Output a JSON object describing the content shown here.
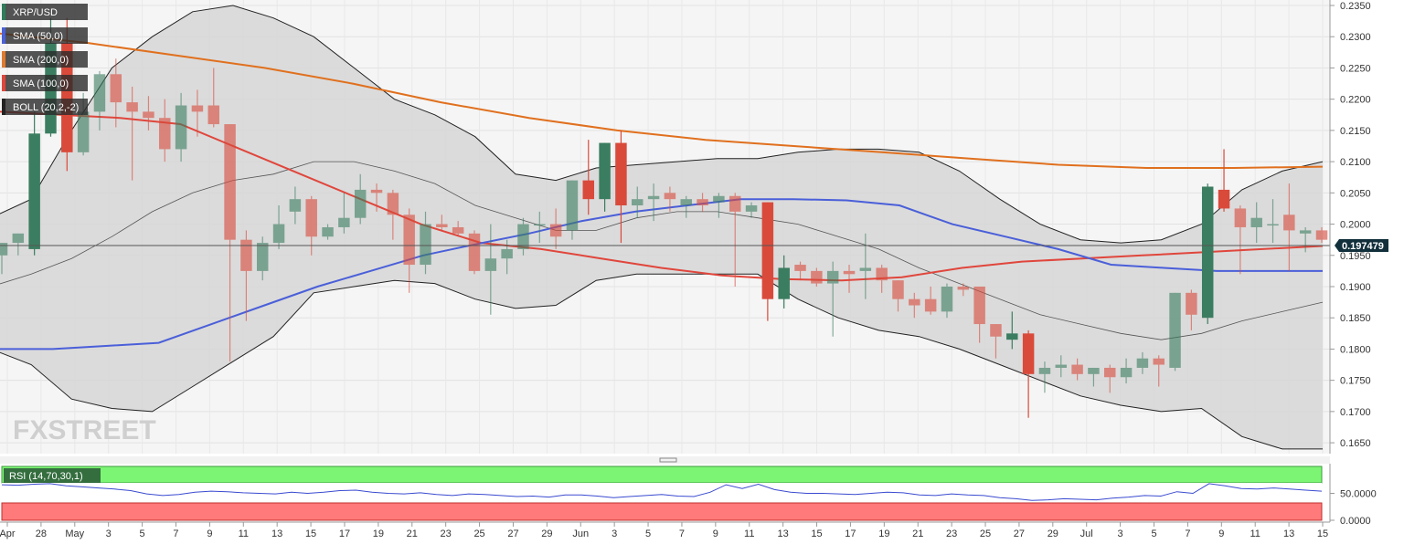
{
  "chart_data": {
    "type": "candlestick",
    "symbol": "XRP/USD",
    "last_price": "0.197479",
    "watermark": "FXSTREET",
    "legend": [
      {
        "label": "XRP/USD",
        "color": "#2e7d5b"
      },
      {
        "label": "SMA (50,0)",
        "color": "#4a5fd9"
      },
      {
        "label": "SMA (200,0)",
        "color": "#e07a2f"
      },
      {
        "label": "SMA (100,0)",
        "color": "#e0463c"
      },
      {
        "label": "BOLL (20,2,-2)",
        "color": "#222222"
      }
    ],
    "y_ticks": [
      "0.2350",
      "0.2300",
      "0.2250",
      "0.2200",
      "0.2150",
      "0.2100",
      "0.2050",
      "0.2000",
      "0.1950",
      "0.1900",
      "0.1850",
      "0.1800",
      "0.1750",
      "0.1700",
      "0.1650"
    ],
    "ylim": [
      0.1637,
      0.235
    ],
    "x_ticks": [
      "Apr",
      "28",
      "May",
      "3",
      "5",
      "7",
      "9",
      "11",
      "13",
      "15",
      "17",
      "19",
      "21",
      "23",
      "25",
      "27",
      "29",
      "Jun",
      "3",
      "5",
      "7",
      "9",
      "11",
      "13",
      "15",
      "17",
      "19",
      "21",
      "23",
      "25",
      "27",
      "29",
      "Jul",
      "3",
      "5",
      "7",
      "9",
      "11",
      "13",
      "15"
    ],
    "candles": [
      {
        "o": 0.195,
        "h": 0.197,
        "l": 0.192,
        "c": 0.197
      },
      {
        "o": 0.197,
        "h": 0.1985,
        "l": 0.195,
        "c": 0.1985
      },
      {
        "o": 0.196,
        "h": 0.218,
        "l": 0.195,
        "c": 0.2145
      },
      {
        "o": 0.2145,
        "h": 0.233,
        "l": 0.214,
        "c": 0.229
      },
      {
        "o": 0.229,
        "h": 0.233,
        "l": 0.2085,
        "c": 0.2115
      },
      {
        "o": 0.2115,
        "h": 0.221,
        "l": 0.211,
        "c": 0.218
      },
      {
        "o": 0.218,
        "h": 0.2245,
        "l": 0.215,
        "c": 0.224
      },
      {
        "o": 0.224,
        "h": 0.2265,
        "l": 0.2155,
        "c": 0.2195
      },
      {
        "o": 0.2195,
        "h": 0.222,
        "l": 0.207,
        "c": 0.218
      },
      {
        "o": 0.218,
        "h": 0.2205,
        "l": 0.215,
        "c": 0.217
      },
      {
        "o": 0.217,
        "h": 0.22,
        "l": 0.21,
        "c": 0.212
      },
      {
        "o": 0.212,
        "h": 0.221,
        "l": 0.21,
        "c": 0.219
      },
      {
        "o": 0.219,
        "h": 0.2215,
        "l": 0.214,
        "c": 0.218
      },
      {
        "o": 0.219,
        "h": 0.225,
        "l": 0.2155,
        "c": 0.216
      },
      {
        "o": 0.216,
        "h": 0.216,
        "l": 0.178,
        "c": 0.1975
      },
      {
        "o": 0.1975,
        "h": 0.199,
        "l": 0.1845,
        "c": 0.1925
      },
      {
        "o": 0.1925,
        "h": 0.198,
        "l": 0.191,
        "c": 0.197
      },
      {
        "o": 0.197,
        "h": 0.203,
        "l": 0.196,
        "c": 0.2
      },
      {
        "o": 0.202,
        "h": 0.206,
        "l": 0.2,
        "c": 0.204
      },
      {
        "o": 0.204,
        "h": 0.2045,
        "l": 0.195,
        "c": 0.198
      },
      {
        "o": 0.198,
        "h": 0.2,
        "l": 0.1975,
        "c": 0.1995
      },
      {
        "o": 0.1995,
        "h": 0.205,
        "l": 0.1985,
        "c": 0.201
      },
      {
        "o": 0.201,
        "h": 0.208,
        "l": 0.2,
        "c": 0.2055
      },
      {
        "o": 0.2055,
        "h": 0.2065,
        "l": 0.202,
        "c": 0.205
      },
      {
        "o": 0.205,
        "h": 0.2055,
        "l": 0.1975,
        "c": 0.2015
      },
      {
        "o": 0.2015,
        "h": 0.2025,
        "l": 0.189,
        "c": 0.1935
      },
      {
        "o": 0.1935,
        "h": 0.202,
        "l": 0.192,
        "c": 0.2
      },
      {
        "o": 0.2,
        "h": 0.2015,
        "l": 0.199,
        "c": 0.1995
      },
      {
        "o": 0.1995,
        "h": 0.2005,
        "l": 0.198,
        "c": 0.1985
      },
      {
        "o": 0.1985,
        "h": 0.199,
        "l": 0.192,
        "c": 0.1925
      },
      {
        "o": 0.1925,
        "h": 0.2,
        "l": 0.1855,
        "c": 0.1945
      },
      {
        "o": 0.1945,
        "h": 0.1975,
        "l": 0.192,
        "c": 0.196
      },
      {
        "o": 0.196,
        "h": 0.201,
        "l": 0.195,
        "c": 0.2
      },
      {
        "o": 0.2,
        "h": 0.202,
        "l": 0.197,
        "c": 0.2
      },
      {
        "o": 0.2,
        "h": 0.2025,
        "l": 0.196,
        "c": 0.198
      },
      {
        "o": 0.199,
        "h": 0.207,
        "l": 0.1975,
        "c": 0.207
      },
      {
        "o": 0.207,
        "h": 0.2135,
        "l": 0.2015,
        "c": 0.204
      },
      {
        "o": 0.204,
        "h": 0.213,
        "l": 0.202,
        "c": 0.213
      },
      {
        "o": 0.213,
        "h": 0.215,
        "l": 0.197,
        "c": 0.203
      },
      {
        "o": 0.203,
        "h": 0.206,
        "l": 0.201,
        "c": 0.204
      },
      {
        "o": 0.204,
        "h": 0.2065,
        "l": 0.2005,
        "c": 0.2045
      },
      {
        "o": 0.205,
        "h": 0.206,
        "l": 0.202,
        "c": 0.204
      },
      {
        "o": 0.203,
        "h": 0.2045,
        "l": 0.201,
        "c": 0.204
      },
      {
        "o": 0.204,
        "h": 0.205,
        "l": 0.202,
        "c": 0.203
      },
      {
        "o": 0.2035,
        "h": 0.205,
        "l": 0.201,
        "c": 0.2045
      },
      {
        "o": 0.2045,
        "h": 0.205,
        "l": 0.19,
        "c": 0.202
      },
      {
        "o": 0.202,
        "h": 0.2035,
        "l": 0.201,
        "c": 0.203
      },
      {
        "o": 0.2035,
        "h": 0.2035,
        "l": 0.1845,
        "c": 0.188
      },
      {
        "o": 0.188,
        "h": 0.195,
        "l": 0.1865,
        "c": 0.193
      },
      {
        "o": 0.1935,
        "h": 0.194,
        "l": 0.191,
        "c": 0.1925
      },
      {
        "o": 0.1925,
        "h": 0.193,
        "l": 0.19,
        "c": 0.1905
      },
      {
        "o": 0.1905,
        "h": 0.194,
        "l": 0.182,
        "c": 0.1925
      },
      {
        "o": 0.1925,
        "h": 0.1935,
        "l": 0.189,
        "c": 0.192
      },
      {
        "o": 0.1925,
        "h": 0.1985,
        "l": 0.188,
        "c": 0.193
      },
      {
        "o": 0.193,
        "h": 0.1935,
        "l": 0.189,
        "c": 0.191
      },
      {
        "o": 0.191,
        "h": 0.191,
        "l": 0.186,
        "c": 0.188
      },
      {
        "o": 0.188,
        "h": 0.189,
        "l": 0.185,
        "c": 0.187
      },
      {
        "o": 0.188,
        "h": 0.19,
        "l": 0.1855,
        "c": 0.186
      },
      {
        "o": 0.186,
        "h": 0.1905,
        "l": 0.185,
        "c": 0.19
      },
      {
        "o": 0.19,
        "h": 0.1905,
        "l": 0.1885,
        "c": 0.1895
      },
      {
        "o": 0.19,
        "h": 0.19,
        "l": 0.181,
        "c": 0.184
      },
      {
        "o": 0.184,
        "h": 0.184,
        "l": 0.1785,
        "c": 0.182
      },
      {
        "o": 0.1815,
        "h": 0.186,
        "l": 0.18,
        "c": 0.1825
      },
      {
        "o": 0.1825,
        "h": 0.183,
        "l": 0.169,
        "c": 0.176
      },
      {
        "o": 0.176,
        "h": 0.178,
        "l": 0.173,
        "c": 0.177
      },
      {
        "o": 0.177,
        "h": 0.179,
        "l": 0.1755,
        "c": 0.1775
      },
      {
        "o": 0.1775,
        "h": 0.1785,
        "l": 0.175,
        "c": 0.176
      },
      {
        "o": 0.176,
        "h": 0.177,
        "l": 0.174,
        "c": 0.177
      },
      {
        "o": 0.177,
        "h": 0.1775,
        "l": 0.173,
        "c": 0.1755
      },
      {
        "o": 0.1755,
        "h": 0.1785,
        "l": 0.1745,
        "c": 0.177
      },
      {
        "o": 0.177,
        "h": 0.1795,
        "l": 0.176,
        "c": 0.1785
      },
      {
        "o": 0.1785,
        "h": 0.179,
        "l": 0.174,
        "c": 0.1775
      },
      {
        "o": 0.177,
        "h": 0.189,
        "l": 0.1765,
        "c": 0.189
      },
      {
        "o": 0.189,
        "h": 0.1895,
        "l": 0.183,
        "c": 0.1855
      },
      {
        "o": 0.185,
        "h": 0.2065,
        "l": 0.184,
        "c": 0.206
      },
      {
        "o": 0.2055,
        "h": 0.212,
        "l": 0.202,
        "c": 0.2025
      },
      {
        "o": 0.2025,
        "h": 0.203,
        "l": 0.192,
        "c": 0.1995
      },
      {
        "o": 0.1995,
        "h": 0.2035,
        "l": 0.197,
        "c": 0.201
      },
      {
        "o": 0.2,
        "h": 0.204,
        "l": 0.197,
        "c": 0.2
      },
      {
        "o": 0.2015,
        "h": 0.2065,
        "l": 0.1925,
        "c": 0.199
      },
      {
        "o": 0.1985,
        "h": 0.1995,
        "l": 0.1955,
        "c": 0.199
      },
      {
        "o": 0.199,
        "h": 0.1995,
        "l": 0.197,
        "c": 0.1975
      }
    ],
    "sma50": [
      0.18,
      0.18,
      0.1805,
      0.181,
      0.184,
      0.187,
      0.19,
      0.1925,
      0.195,
      0.1968,
      0.1985,
      0.2005,
      0.202,
      0.203,
      0.204,
      0.204,
      0.2038,
      0.203,
      0.2,
      0.198,
      0.196,
      0.1935,
      0.193,
      0.1925,
      0.1925,
      0.1925
    ],
    "sma100": [
      0.218,
      0.2175,
      0.217,
      0.216,
      0.212,
      0.208,
      0.204,
      0.2,
      0.197,
      0.196,
      0.1945,
      0.193,
      0.1918,
      0.1912,
      0.191,
      0.1915,
      0.193,
      0.194,
      0.1945,
      0.195,
      0.1955,
      0.196,
      0.1965
    ],
    "sma200": [
      0.2305,
      0.229,
      0.227,
      0.225,
      0.2225,
      0.2195,
      0.217,
      0.215,
      0.2135,
      0.2125,
      0.2115,
      0.2105,
      0.2095,
      0.209,
      0.209,
      0.2092
    ],
    "boll_upper": [
      0.201,
      0.204,
      0.215,
      0.225,
      0.23,
      0.234,
      0.235,
      0.233,
      0.23,
      0.225,
      0.22,
      0.2175,
      0.214,
      0.208,
      0.207,
      0.209,
      0.2095,
      0.21,
      0.2105,
      0.2105,
      0.2115,
      0.212,
      0.212,
      0.2115,
      0.2085,
      0.204,
      0.2,
      0.1975,
      0.197,
      0.1975,
      0.2,
      0.2055,
      0.2085,
      0.21
    ],
    "boll_middle": [
      0.19,
      0.192,
      0.1945,
      0.198,
      0.202,
      0.205,
      0.207,
      0.208,
      0.21,
      0.21,
      0.2085,
      0.2065,
      0.203,
      0.201,
      0.199,
      0.199,
      0.201,
      0.202,
      0.202,
      0.201,
      0.2,
      0.198,
      0.196,
      0.193,
      0.1905,
      0.188,
      0.1855,
      0.184,
      0.1825,
      0.1815,
      0.1825,
      0.1845,
      0.186,
      0.1875
    ],
    "boll_lower": [
      0.18,
      0.1775,
      0.172,
      0.1705,
      0.17,
      0.174,
      0.178,
      0.182,
      0.189,
      0.19,
      0.191,
      0.1905,
      0.188,
      0.1865,
      0.187,
      0.191,
      0.192,
      0.192,
      0.192,
      0.192,
      0.188,
      0.185,
      0.183,
      0.182,
      0.18,
      0.1775,
      0.175,
      0.1725,
      0.171,
      0.17,
      0.1705,
      0.166,
      0.164,
      0.164
    ],
    "rsi": {
      "label": "RSI (14,70,30,1)",
      "y_ticks": [
        "50.0000",
        "0.0000"
      ],
      "values": [
        66,
        65,
        67,
        68,
        64,
        62,
        60,
        58,
        55,
        49,
        46,
        48,
        52,
        54,
        53,
        51,
        50,
        49,
        52,
        50,
        52,
        55,
        56,
        52,
        50,
        49,
        51,
        48,
        46,
        49,
        48,
        46,
        44,
        45,
        43,
        47,
        47,
        45,
        42,
        44,
        46,
        48,
        45,
        44,
        52,
        66,
        59,
        67,
        57,
        52,
        50,
        50,
        49,
        48,
        50,
        52,
        51,
        47,
        46,
        49,
        47,
        46,
        42,
        40,
        37,
        38,
        40,
        39,
        38,
        41,
        43,
        46,
        45,
        53,
        50,
        68,
        64,
        59,
        58,
        60,
        58,
        56,
        54
      ]
    }
  }
}
